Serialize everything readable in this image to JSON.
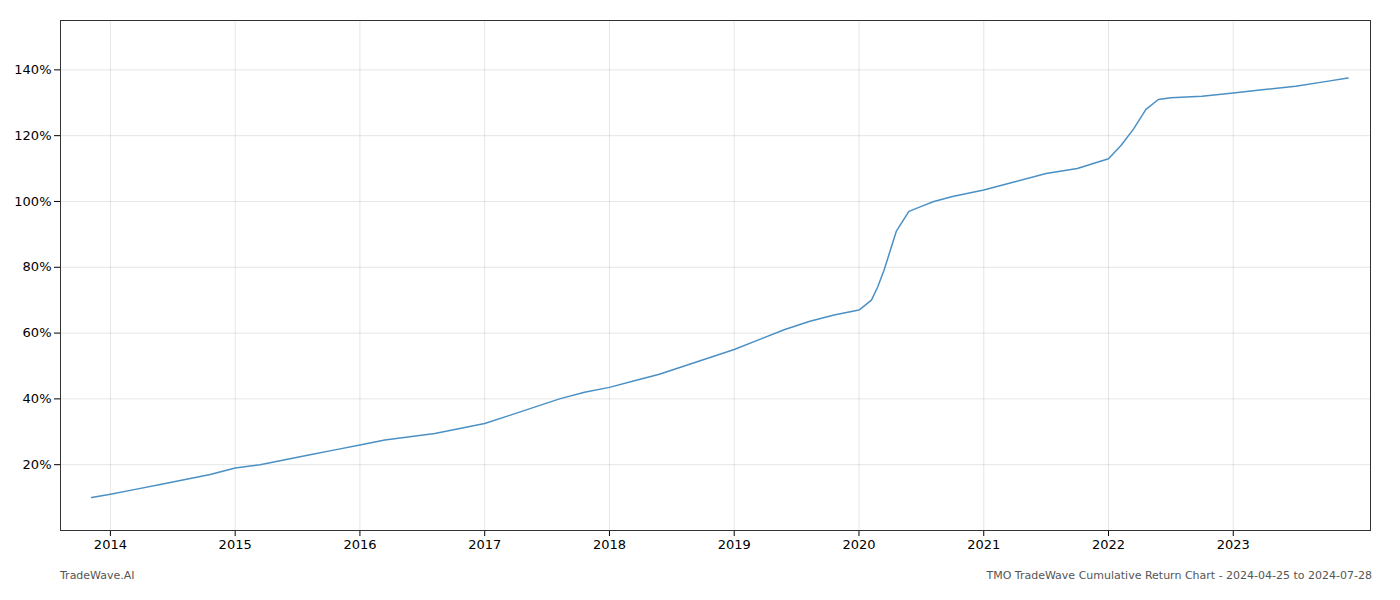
{
  "chart_data": {
    "type": "line",
    "color": "#4a90c4",
    "x": [
      2013.85,
      2014.0,
      2014.2,
      2014.4,
      2014.6,
      2014.8,
      2015.0,
      2015.2,
      2015.4,
      2015.6,
      2015.8,
      2016.0,
      2016.2,
      2016.4,
      2016.6,
      2016.8,
      2017.0,
      2017.2,
      2017.4,
      2017.6,
      2017.8,
      2018.0,
      2018.2,
      2018.4,
      2018.6,
      2018.8,
      2019.0,
      2019.2,
      2019.4,
      2019.6,
      2019.8,
      2020.0,
      2020.1,
      2020.15,
      2020.2,
      2020.25,
      2020.3,
      2020.4,
      2020.5,
      2020.6,
      2020.75,
      2021.0,
      2021.25,
      2021.5,
      2021.75,
      2022.0,
      2022.1,
      2022.2,
      2022.3,
      2022.4,
      2022.5,
      2022.75,
      2023.0,
      2023.25,
      2023.5,
      2023.75,
      2023.92
    ],
    "values": [
      10,
      11,
      12.5,
      14,
      15.5,
      17,
      19,
      20,
      21.5,
      23,
      24.5,
      26,
      27.5,
      28.5,
      29.5,
      31,
      32.5,
      35,
      37.5,
      40,
      42,
      43.5,
      45.5,
      47.5,
      50,
      52.5,
      55,
      58,
      61,
      63.5,
      65.5,
      67,
      70,
      74,
      79,
      85,
      91,
      97,
      98.5,
      100,
      101.5,
      103.5,
      106,
      108.5,
      110,
      113,
      117,
      122,
      128,
      131,
      131.5,
      132,
      133,
      134,
      135,
      136.5,
      137.5
    ],
    "xlim": [
      2013.6,
      2024.1
    ],
    "xticks": [
      2014,
      2015,
      2016,
      2017,
      2018,
      2019,
      2020,
      2021,
      2022,
      2023
    ],
    "ylim": [
      0,
      155
    ],
    "yticks": [
      {
        "value": 20,
        "label": "20%"
      },
      {
        "value": 40,
        "label": "40%"
      },
      {
        "value": 60,
        "label": "60%"
      },
      {
        "value": 80,
        "label": "80%"
      },
      {
        "value": 100,
        "label": "100%"
      },
      {
        "value": 120,
        "label": "120%"
      },
      {
        "value": 140,
        "label": "140%"
      }
    ],
    "grid": true,
    "annotations": [
      "TradeWave.AI",
      "TMO TradeWave Cumulative Return Chart - 2024-04-25 to 2024-07-28"
    ]
  }
}
